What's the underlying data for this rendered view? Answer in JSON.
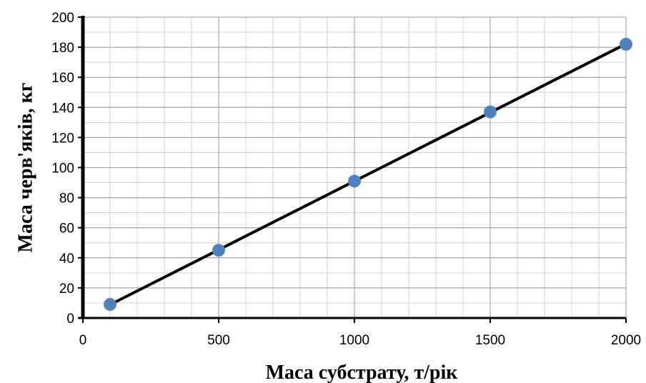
{
  "chart_data": {
    "type": "scatter",
    "xlabel": "Маса субстрату,  т/рік",
    "ylabel": "Маса черв'яків, кг",
    "xlim": [
      0,
      2000
    ],
    "ylim": [
      0,
      200
    ],
    "x_ticks": [
      0,
      500,
      1000,
      1500,
      2000
    ],
    "x_tick_labels": [
      "0",
      "500",
      "1000",
      "1500",
      "2000"
    ],
    "y_ticks": [
      0,
      20,
      40,
      60,
      80,
      100,
      120,
      140,
      160,
      180,
      200
    ],
    "y_tick_labels": [
      "0",
      "20",
      "40",
      "60",
      "80",
      "100",
      "120",
      "140",
      "160",
      "180",
      "200"
    ],
    "grid": true,
    "series": [
      {
        "x": [
          100,
          500,
          1000,
          1500,
          2000
        ],
        "y": [
          9,
          45,
          91,
          137,
          182
        ],
        "marker_color": "#4f81bd",
        "line_color": "#000000",
        "trendline": true
      }
    ]
  }
}
